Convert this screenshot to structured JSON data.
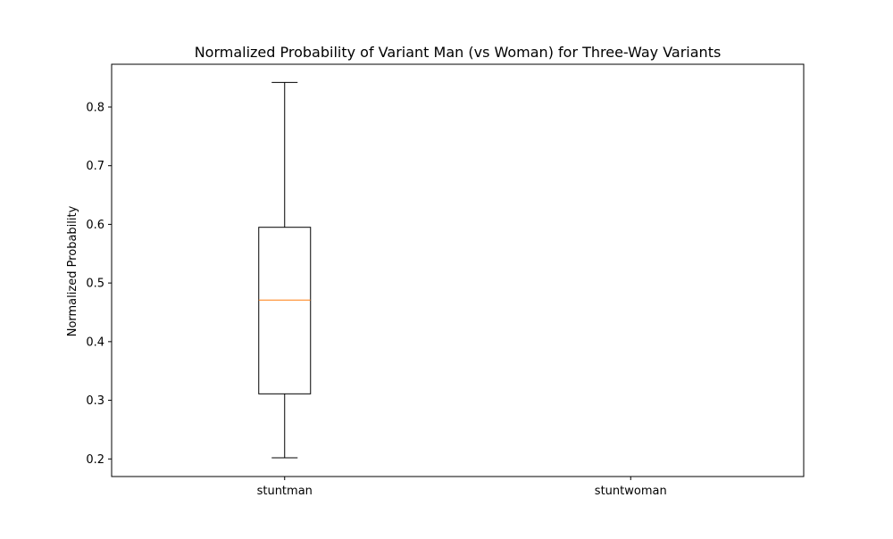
{
  "chart_data": {
    "type": "box",
    "title": "Normalized Probability of Variant Man (vs Woman) for Three-Way Variants",
    "xlabel": "",
    "ylabel": "Normalized Probability",
    "ylim": [
      0.17,
      0.873
    ],
    "yticks": [
      0.2,
      0.3,
      0.4,
      0.5,
      0.6,
      0.7,
      0.8
    ],
    "ytick_labels": [
      "0.2",
      "0.3",
      "0.4",
      "0.5",
      "0.6",
      "0.7",
      "0.8"
    ],
    "categories": [
      "stuntman",
      "stuntwoman"
    ],
    "boxes": [
      {
        "category": "stuntman",
        "whisker_low": 0.202,
        "q1": 0.311,
        "median": 0.471,
        "q3": 0.595,
        "whisker_high": 0.842
      },
      {
        "category": "stuntwoman",
        "whisker_low": null,
        "q1": null,
        "median": null,
        "q3": null,
        "whisker_high": null
      }
    ],
    "grid": false,
    "colors": {
      "box": "#000000",
      "median": "#ff7f0e",
      "axes": "#000000"
    }
  }
}
